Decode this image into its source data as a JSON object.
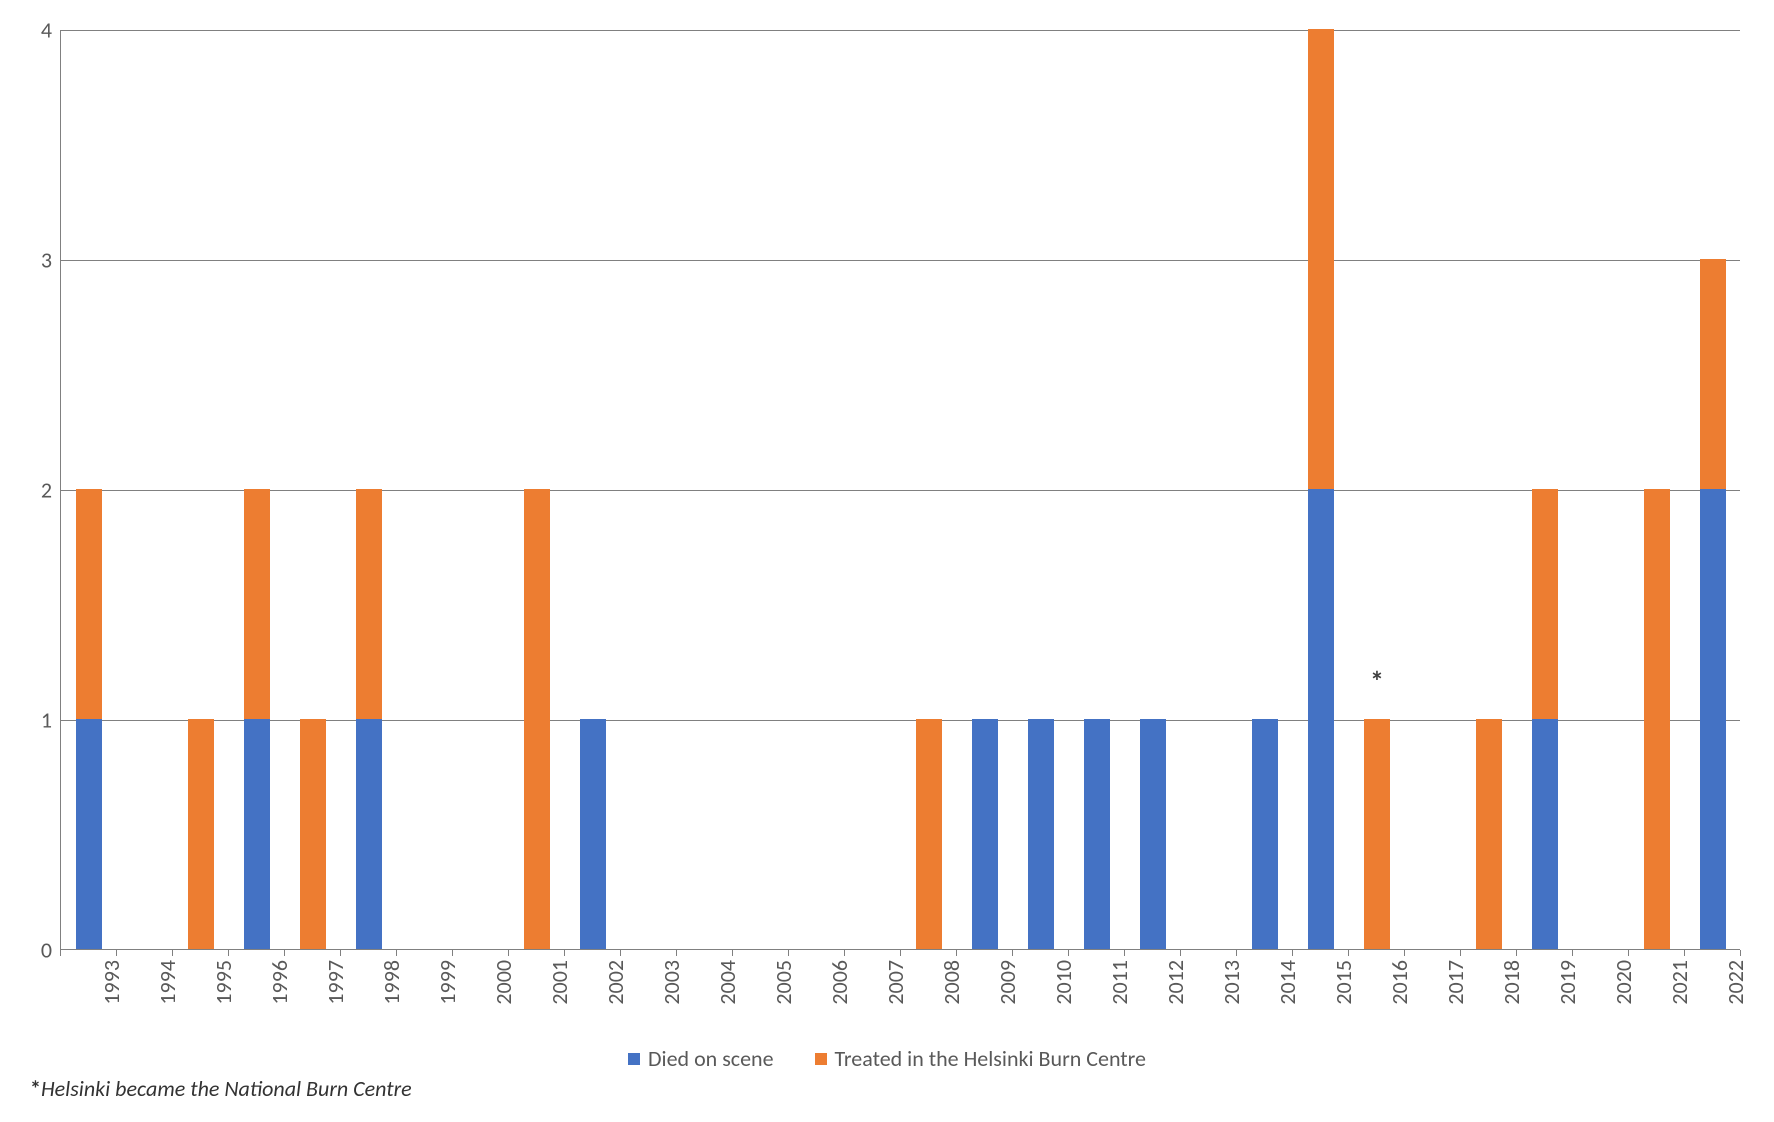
{
  "chart": {
    "type": "stacked-bar",
    "background_color": "#ffffff",
    "grid_color": "#808080",
    "axis_color": "#808080",
    "text_color": "#595959",
    "axis_fontsize": 22,
    "legend_fontsize": 22,
    "footnote_fontsize": 22,
    "ylim": [
      0,
      4
    ],
    "ytick_step": 1,
    "yticks": [
      0,
      1,
      2,
      3,
      4
    ],
    "categories": [
      "1993",
      "1994",
      "1995",
      "1996",
      "1997",
      "1998",
      "1999",
      "2000",
      "2001",
      "2002",
      "2003",
      "2004",
      "2005",
      "2006",
      "2007",
      "2008",
      "2009",
      "2010",
      "2011",
      "2012",
      "2013",
      "2014",
      "2015",
      "2016",
      "2017",
      "2018",
      "2019",
      "2020",
      "2021",
      "2022"
    ],
    "series": [
      {
        "name": "Died on scene",
        "color": "#4472c4",
        "values": [
          1,
          0,
          0,
          1,
          0,
          1,
          0,
          0,
          0,
          1,
          0,
          0,
          0,
          0,
          0,
          0,
          1,
          1,
          1,
          1,
          0,
          1,
          2,
          0,
          0,
          0,
          1,
          0,
          0,
          2
        ]
      },
      {
        "name": "Treated in the Helsinki Burn Centre",
        "color": "#ed7d31",
        "values": [
          1,
          0,
          1,
          1,
          1,
          1,
          0,
          0,
          2,
          0,
          0,
          0,
          0,
          0,
          0,
          1,
          0,
          0,
          0,
          0,
          0,
          0,
          2,
          1,
          0,
          1,
          1,
          0,
          2,
          1
        ]
      }
    ],
    "bar_width_ratio": 0.48,
    "annotation": {
      "category": "2016",
      "symbol": "*",
      "y": 1.12
    },
    "footnote": {
      "star": "*",
      "text": "Helsinki became the National Burn Centre"
    }
  }
}
